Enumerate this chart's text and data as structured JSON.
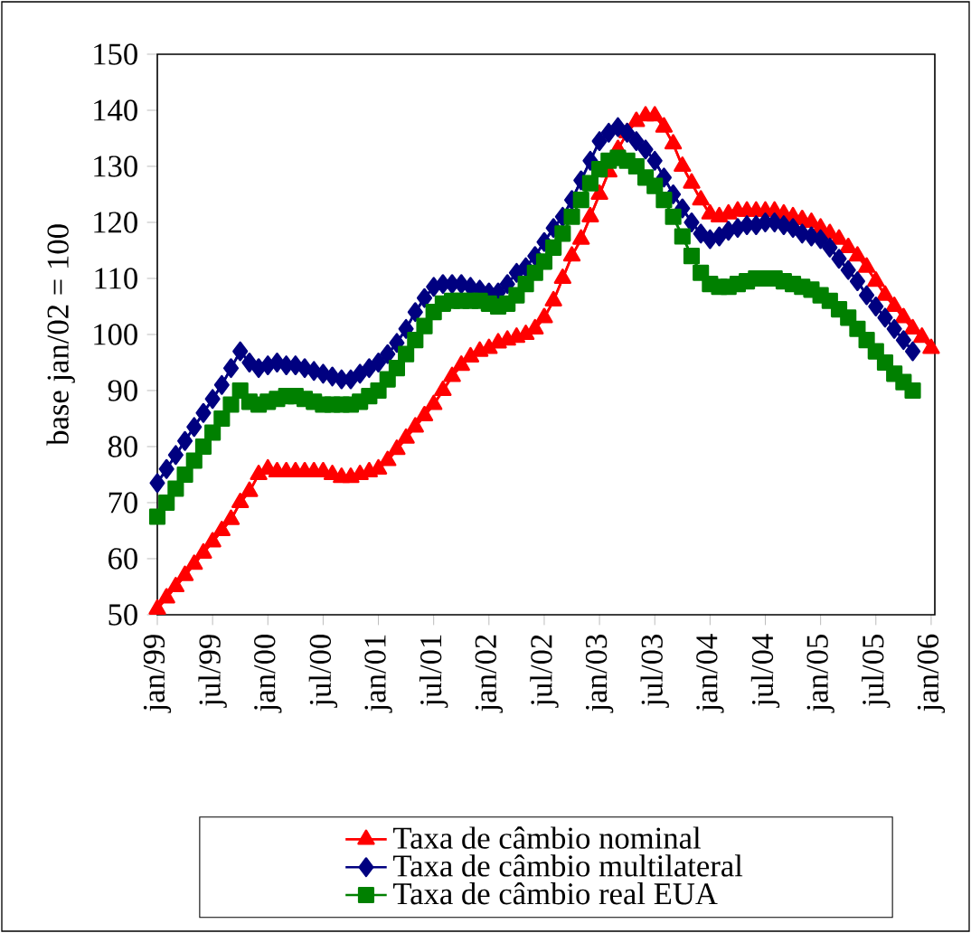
{
  "chart_data": {
    "type": "line",
    "ylabel": "base jan/02 = 100",
    "categories": [
      "jan/99",
      null,
      null,
      null,
      null,
      null,
      "jul/99",
      null,
      null,
      null,
      null,
      null,
      "jan/00",
      null,
      null,
      null,
      null,
      null,
      "jul/00",
      null,
      null,
      null,
      null,
      null,
      "jan/01",
      null,
      null,
      null,
      null,
      null,
      "jul/01",
      null,
      null,
      null,
      null,
      null,
      "jan/02",
      null,
      null,
      null,
      null,
      null,
      "jul/02",
      null,
      null,
      null,
      null,
      null,
      "jan/03",
      null,
      null,
      null,
      null,
      null,
      "jul/03",
      null,
      null,
      null,
      null,
      null,
      "jan/04",
      null,
      null,
      null,
      null,
      null,
      "jul/04",
      null,
      null,
      null,
      null,
      null,
      "jan/05",
      null,
      null,
      null,
      null,
      null,
      "jul/05",
      null,
      null,
      null,
      null,
      null,
      "jan/06"
    ],
    "series": [
      {
        "name": "Taxa de câmbio nominal",
        "color": "#ff0000",
        "marker": "triangle",
        "values": [
          51,
          53,
          55,
          57,
          59,
          61,
          63,
          65,
          67,
          70,
          72,
          75,
          76,
          75.5,
          75.5,
          75.5,
          75.5,
          75.5,
          75.5,
          75,
          74.5,
          74.5,
          75,
          75.5,
          76,
          77.5,
          79.5,
          81.5,
          83.5,
          85.5,
          87.5,
          90,
          92.5,
          94.5,
          96,
          97,
          97.5,
          98.5,
          99,
          99.5,
          100,
          101,
          103,
          106,
          110,
          114,
          117,
          121,
          125,
          129,
          133,
          136,
          138,
          139,
          139,
          137,
          134,
          130,
          127,
          124,
          121.5,
          121,
          121.5,
          122,
          122,
          122,
          122,
          122,
          121.5,
          121,
          120.5,
          120,
          119,
          118,
          117,
          115.5,
          114,
          112,
          109.5,
          107,
          105,
          103,
          101,
          99.5,
          97.5
        ]
      },
      {
        "name": "Taxa de câmbio multilateral",
        "color": "#000080",
        "marker": "diamond",
        "values": [
          73.5,
          76,
          78.5,
          81,
          83.5,
          86,
          88.5,
          91,
          94,
          97,
          95,
          94,
          94.5,
          95,
          94.5,
          94.5,
          94,
          93.5,
          93,
          92.5,
          92,
          92,
          93,
          94,
          95,
          96.5,
          98.5,
          101,
          104,
          106.5,
          108.5,
          109,
          109,
          109,
          108.5,
          108,
          107.5,
          107.5,
          109,
          111,
          112,
          114,
          116.5,
          119,
          121,
          124,
          127.5,
          131,
          134.5,
          136,
          137,
          136,
          134.5,
          133,
          131,
          128,
          125,
          122.5,
          120,
          118,
          117,
          117.5,
          118.5,
          119,
          119.5,
          119.5,
          120,
          120,
          119.5,
          119,
          118,
          117.5,
          117,
          115.5,
          113.5,
          111.5,
          109.5,
          107,
          105,
          103,
          101,
          99,
          97,
          null,
          null
        ]
      },
      {
        "name": "Taxa de câmbio real EUA",
        "color": "#008000",
        "marker": "square",
        "values": [
          67.5,
          70,
          72.5,
          75,
          77.5,
          80,
          82.5,
          85,
          87.5,
          90,
          88,
          87.5,
          88,
          88.5,
          89,
          89,
          88.5,
          88,
          87.5,
          87.5,
          87.5,
          87.5,
          88,
          89,
          90,
          92,
          94,
          96.5,
          99,
          101.5,
          104,
          105.5,
          106,
          106,
          106,
          106,
          105.5,
          105,
          105.5,
          107,
          109,
          111,
          113,
          115.5,
          118,
          121,
          124,
          127,
          129.5,
          131,
          131.5,
          131,
          130,
          128,
          126.5,
          124,
          121,
          117.5,
          114,
          111,
          109,
          108.5,
          108.5,
          109,
          109.5,
          110,
          110,
          110,
          109.5,
          109,
          108.5,
          108,
          107,
          106,
          104.5,
          103,
          101,
          99,
          97,
          95,
          93,
          91.5,
          90,
          null,
          null
        ]
      }
    ],
    "ylim": [
      50,
      150
    ],
    "yticks": [
      50,
      60,
      70,
      80,
      90,
      100,
      110,
      120,
      130,
      140,
      150
    ],
    "legend": "bottom"
  }
}
